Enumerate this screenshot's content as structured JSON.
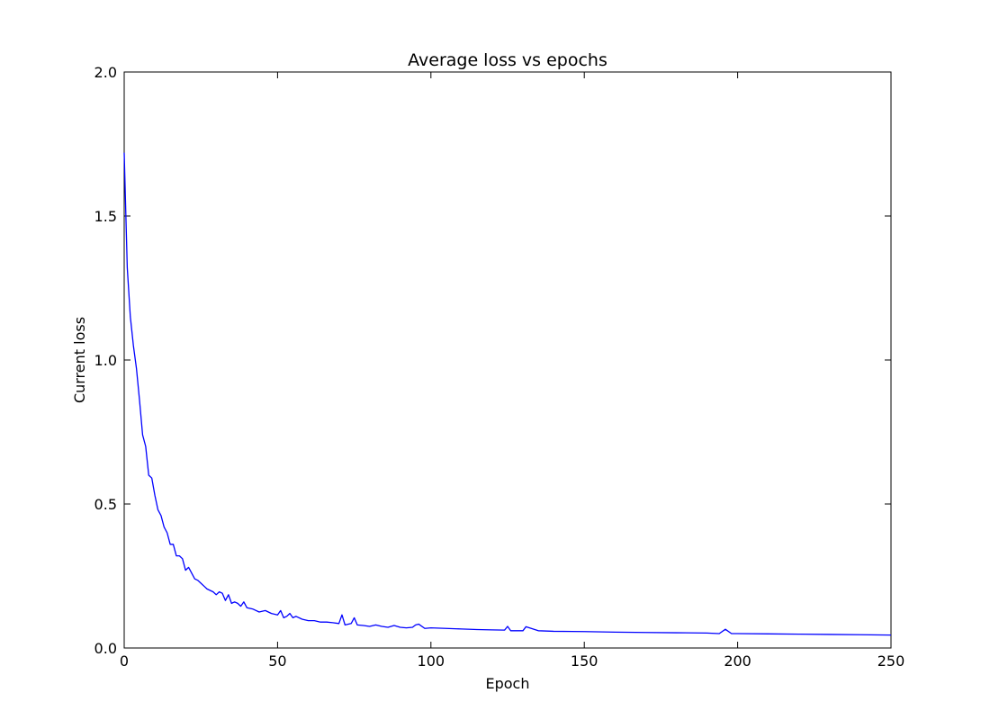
{
  "chart_data": {
    "type": "line",
    "title": "Average loss vs epochs",
    "xlabel": "Epoch",
    "ylabel": "Current loss",
    "xlim": [
      0,
      250
    ],
    "ylim": [
      0.0,
      2.0
    ],
    "x_ticks": [
      0,
      50,
      100,
      150,
      200,
      250
    ],
    "x_tick_labels": [
      "0",
      "50",
      "100",
      "150",
      "200",
      "250"
    ],
    "y_ticks": [
      0.0,
      0.5,
      1.0,
      1.5,
      2.0
    ],
    "y_tick_labels": [
      "0.0",
      "0.5",
      "1.0",
      "1.5",
      "2.0"
    ],
    "grid": false,
    "legend": "none",
    "series": [
      {
        "color": "#0000ff",
        "x": [
          0,
          1,
          2,
          3,
          4,
          5,
          6,
          7,
          8,
          9,
          10,
          11,
          12,
          13,
          14,
          15,
          16,
          17,
          18,
          19,
          20,
          21,
          22,
          23,
          24,
          25,
          26,
          27,
          28,
          29,
          30,
          31,
          32,
          33,
          34,
          35,
          36,
          37,
          38,
          39,
          40,
          42,
          44,
          46,
          48,
          50,
          51,
          52,
          53,
          54,
          55,
          56,
          58,
          60,
          62,
          64,
          66,
          68,
          70,
          71,
          72,
          74,
          75,
          76,
          78,
          80,
          82,
          84,
          86,
          88,
          90,
          92,
          94,
          95,
          96,
          98,
          100,
          105,
          110,
          115,
          120,
          124,
          125,
          126,
          128,
          130,
          131,
          135,
          140,
          150,
          160,
          170,
          180,
          190,
          194,
          196,
          198,
          200,
          210,
          220,
          230,
          240,
          250
        ],
        "y": [
          1.72,
          1.32,
          1.15,
          1.05,
          0.97,
          0.86,
          0.74,
          0.7,
          0.6,
          0.59,
          0.53,
          0.48,
          0.46,
          0.42,
          0.4,
          0.36,
          0.36,
          0.32,
          0.32,
          0.31,
          0.27,
          0.28,
          0.26,
          0.24,
          0.235,
          0.225,
          0.215,
          0.205,
          0.2,
          0.195,
          0.185,
          0.195,
          0.19,
          0.165,
          0.185,
          0.155,
          0.16,
          0.155,
          0.145,
          0.16,
          0.14,
          0.135,
          0.125,
          0.13,
          0.12,
          0.115,
          0.13,
          0.105,
          0.11,
          0.12,
          0.105,
          0.11,
          0.1,
          0.095,
          0.095,
          0.09,
          0.09,
          0.088,
          0.085,
          0.115,
          0.08,
          0.085,
          0.105,
          0.08,
          0.078,
          0.075,
          0.08,
          0.075,
          0.072,
          0.078,
          0.072,
          0.07,
          0.072,
          0.08,
          0.083,
          0.068,
          0.07,
          0.068,
          0.066,
          0.064,
          0.063,
          0.062,
          0.075,
          0.06,
          0.06,
          0.06,
          0.074,
          0.06,
          0.058,
          0.057,
          0.055,
          0.054,
          0.053,
          0.052,
          0.05,
          0.065,
          0.05,
          0.05,
          0.049,
          0.048,
          0.047,
          0.046,
          0.045
        ]
      }
    ]
  }
}
